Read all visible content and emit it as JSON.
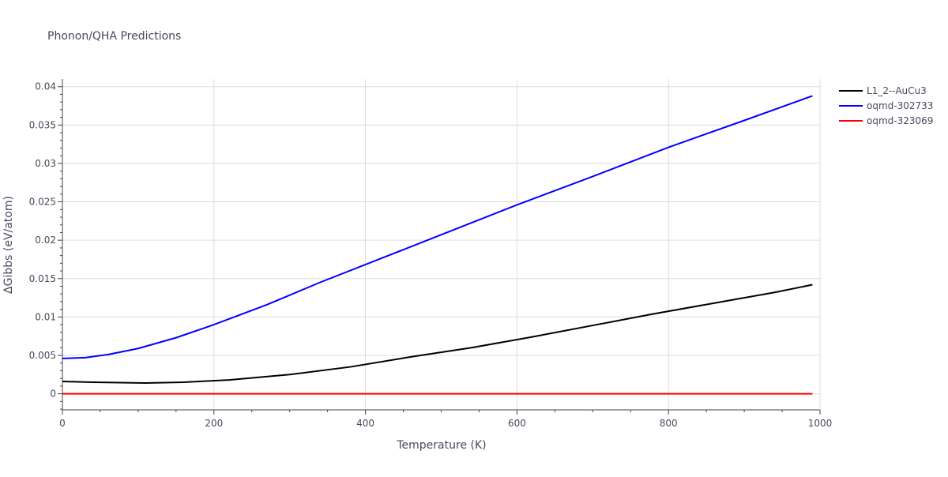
{
  "chart_data": {
    "type": "line",
    "title": "Phonon/QHA Predictions",
    "xlabel": "Temperature (K)",
    "ylabel": "ΔGibbs (eV/atom)",
    "xlim": [
      0,
      1000
    ],
    "ylim": [
      -0.0021,
      0.041
    ],
    "x_ticks": [
      0,
      200,
      400,
      600,
      800,
      1000
    ],
    "x_tick_labels": [
      "0",
      "200",
      "400",
      "600",
      "800",
      "1000"
    ],
    "y_ticks": [
      0,
      0.005,
      0.01,
      0.015,
      0.02,
      0.025,
      0.03,
      0.035,
      0.04
    ],
    "y_tick_labels": [
      "0",
      "0.005",
      "0.01",
      "0.015",
      "0.02",
      "0.025",
      "0.03",
      "0.035",
      "0.04"
    ],
    "grid": true,
    "legend_position": "top-right",
    "series": [
      {
        "name": "L1_2--AuCu3",
        "color": "#000000",
        "points": [
          [
            0,
            0.0016
          ],
          [
            40,
            0.0015
          ],
          [
            110,
            0.0014
          ],
          [
            160,
            0.0015
          ],
          [
            220,
            0.0018
          ],
          [
            300,
            0.0025
          ],
          [
            380,
            0.0035
          ],
          [
            460,
            0.0048
          ],
          [
            540,
            0.006
          ],
          [
            620,
            0.0074
          ],
          [
            700,
            0.0089
          ],
          [
            780,
            0.0104
          ],
          [
            860,
            0.0118
          ],
          [
            940,
            0.0132
          ],
          [
            990,
            0.0142
          ]
        ]
      },
      {
        "name": "oqmd-302733",
        "color": "#0000ff",
        "points": [
          [
            0,
            0.0046
          ],
          [
            30,
            0.0047
          ],
          [
            60,
            0.0051
          ],
          [
            100,
            0.0059
          ],
          [
            150,
            0.0073
          ],
          [
            200,
            0.009
          ],
          [
            270,
            0.0116
          ],
          [
            340,
            0.0145
          ],
          [
            420,
            0.0176
          ],
          [
            510,
            0.0211
          ],
          [
            600,
            0.0246
          ],
          [
            700,
            0.0283
          ],
          [
            800,
            0.0321
          ],
          [
            900,
            0.0356
          ],
          [
            990,
            0.0388
          ]
        ]
      },
      {
        "name": "oqmd-323069",
        "color": "#ff0000",
        "points": [
          [
            0,
            0.0
          ],
          [
            250,
            0.0
          ],
          [
            500,
            0.0
          ],
          [
            750,
            0.0
          ],
          [
            990,
            0.0
          ]
        ]
      }
    ]
  }
}
